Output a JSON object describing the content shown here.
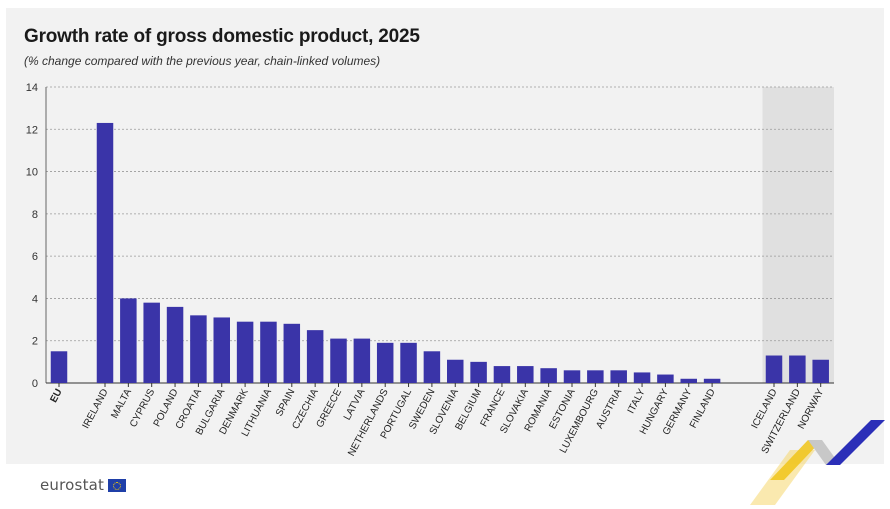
{
  "chart_data": {
    "type": "bar",
    "title": "Growth rate of gross domestic product, 2025",
    "subtitle": "(% change compared with the previous year, chain-linked volumes)",
    "xlabel": "",
    "ylabel": "",
    "ylim": [
      0,
      14
    ],
    "yticks": [
      0,
      2,
      4,
      6,
      8,
      10,
      12,
      14
    ],
    "grid": true,
    "categories": [
      "EU",
      "IRELAND",
      "MALTA",
      "CYPRUS",
      "POLAND",
      "CROATIA",
      "BULGARIA",
      "DENMARK",
      "LITHUANIA",
      "SPAIN",
      "CZECHIA",
      "GREECE",
      "LATVIA",
      "NETHERLANDS",
      "PORTUGAL",
      "SWEDEN",
      "SLOVENIA",
      "BELGIUM",
      "FRANCE",
      "SLOVAKIA",
      "ROMANIA",
      "ESTONIA",
      "LUXEMBOURG",
      "AUSTRIA",
      "ITALY",
      "HUNGARY",
      "GERMANY",
      "FINLAND",
      "ICELAND",
      "SWITZERLAND",
      "NORWAY"
    ],
    "values": [
      1.5,
      12.3,
      4.0,
      3.8,
      3.6,
      3.2,
      3.1,
      2.9,
      2.9,
      2.8,
      2.5,
      2.1,
      2.1,
      1.9,
      1.9,
      1.5,
      1.1,
      1.0,
      0.8,
      0.8,
      0.7,
      0.6,
      0.6,
      0.6,
      0.5,
      0.4,
      0.2,
      0.2,
      1.3,
      1.3,
      1.1
    ],
    "groups": {
      "eu": [
        "EU"
      ],
      "member_states": [
        "IRELAND",
        "MALTA",
        "CYPRUS",
        "POLAND",
        "CROATIA",
        "BULGARIA",
        "DENMARK",
        "LITHUANIA",
        "SPAIN",
        "CZECHIA",
        "GREECE",
        "LATVIA",
        "NETHERLANDS",
        "PORTUGAL",
        "SWEDEN",
        "SLOVENIA",
        "BELGIUM",
        "FRANCE",
        "SLOVAKIA",
        "ROMANIA",
        "ESTONIA",
        "LUXEMBOURG",
        "AUSTRIA",
        "ITALY",
        "HUNGARY",
        "GERMANY",
        "FINLAND"
      ],
      "efta_shaded": [
        "ICELAND",
        "SWITZERLAND",
        "NORWAY"
      ]
    },
    "bar_color": "#3a34a8"
  },
  "colors": {
    "panel_background": "#f2f2f2",
    "shaded_region": "#e0e0e0",
    "deco_yellow": "#f0c419",
    "deco_blue": "#2b2fb8"
  },
  "footer": {
    "logo_text": "eurostat",
    "logo_icon": "eu-flag-icon"
  }
}
